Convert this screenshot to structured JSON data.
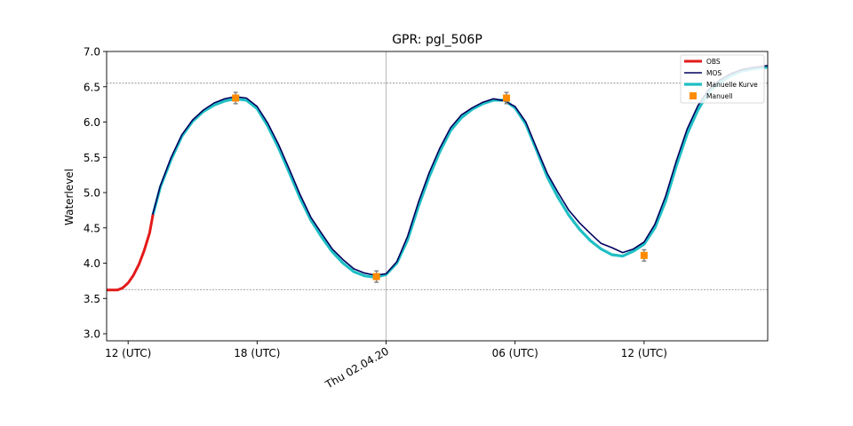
{
  "chart_data": {
    "type": "line",
    "title": "GPR: pgl_506P",
    "xlabel": "",
    "ylabel": "Waterlevel",
    "x_unit": "hours since 2020-04-01 00:00 UTC",
    "xlim": [
      11.0,
      41.75
    ],
    "ylim": [
      2.9,
      7.0
    ],
    "yticks": [
      3.0,
      3.5,
      4.0,
      4.5,
      5.0,
      5.5,
      6.0,
      6.5,
      7.0
    ],
    "xticks": [
      {
        "x": 12,
        "label": "12 (UTC)",
        "rotated": false
      },
      {
        "x": 18,
        "label": "18 (UTC)",
        "rotated": false
      },
      {
        "x": 24,
        "label": "Thu 02.04.20",
        "rotated": true
      },
      {
        "x": 30,
        "label": "06 (UTC)",
        "rotated": false
      },
      {
        "x": 36,
        "label": "12 (UTC)",
        "rotated": false
      }
    ],
    "hlines": [
      6.55,
      3.62
    ],
    "vlines": [
      24
    ],
    "legend_position": "top-right",
    "series": [
      {
        "name": "OBS",
        "color": "#e41a1a",
        "kind": "line",
        "x": [
          11.0,
          11.5,
          11.75,
          12.0,
          12.25,
          12.5,
          12.75,
          13.0,
          13.15
        ],
        "y": [
          3.62,
          3.62,
          3.65,
          3.72,
          3.83,
          3.98,
          4.18,
          4.43,
          4.68
        ]
      },
      {
        "name": "MOS",
        "color": "#00005e",
        "kind": "line",
        "x": [
          13.15,
          13.5,
          14.0,
          14.5,
          15.0,
          15.5,
          16.0,
          16.5,
          17.0,
          17.5,
          18.0,
          18.5,
          19.0,
          19.5,
          20.0,
          20.5,
          21.0,
          21.5,
          22.0,
          22.5,
          23.0,
          23.5,
          24.0,
          24.5,
          25.0,
          25.5,
          26.0,
          26.5,
          27.0,
          27.5,
          28.0,
          28.5,
          29.0,
          29.5,
          30.0,
          30.5,
          31.0,
          31.5,
          32.0,
          32.5,
          33.0,
          33.5,
          34.0,
          34.5,
          35.0,
          35.5,
          36.0,
          36.5,
          37.0,
          37.5,
          38.0,
          38.5,
          39.0,
          39.5,
          40.0,
          40.5,
          41.0,
          41.75
        ],
        "y": [
          4.7,
          5.1,
          5.5,
          5.82,
          6.03,
          6.17,
          6.27,
          6.33,
          6.36,
          6.34,
          6.22,
          5.98,
          5.68,
          5.33,
          4.97,
          4.65,
          4.42,
          4.2,
          4.05,
          3.92,
          3.86,
          3.83,
          3.85,
          4.02,
          4.38,
          4.86,
          5.28,
          5.63,
          5.92,
          6.1,
          6.2,
          6.28,
          6.33,
          6.3,
          6.22,
          6.0,
          5.63,
          5.27,
          5.0,
          4.75,
          4.57,
          4.42,
          4.28,
          4.22,
          4.15,
          4.2,
          4.3,
          4.55,
          4.95,
          5.45,
          5.9,
          6.23,
          6.46,
          6.59,
          6.68,
          6.74,
          6.77,
          6.8
        ]
      },
      {
        "name": "Manuelle Kurve",
        "color": "#1fbfc4",
        "kind": "line",
        "x": [
          13.15,
          13.5,
          14.0,
          14.5,
          15.0,
          15.5,
          16.0,
          16.5,
          17.0,
          17.5,
          18.0,
          18.5,
          19.0,
          19.5,
          20.0,
          20.5,
          21.0,
          21.5,
          22.0,
          22.5,
          23.0,
          23.5,
          24.0,
          24.5,
          25.0,
          25.5,
          26.0,
          26.5,
          27.0,
          27.5,
          28.0,
          28.5,
          29.0,
          29.5,
          30.0,
          30.5,
          31.0,
          31.5,
          32.0,
          32.5,
          33.0,
          33.5,
          34.0,
          34.5,
          35.0,
          35.5,
          36.0,
          36.5,
          37.0,
          37.5,
          38.0,
          38.5,
          39.0,
          39.5,
          40.0,
          40.5,
          41.0,
          41.75
        ],
        "y": [
          4.68,
          5.08,
          5.47,
          5.8,
          6.01,
          6.15,
          6.24,
          6.3,
          6.33,
          6.31,
          6.19,
          5.94,
          5.63,
          5.28,
          4.92,
          4.61,
          4.37,
          4.16,
          4.0,
          3.88,
          3.82,
          3.8,
          3.84,
          4.0,
          4.33,
          4.8,
          5.22,
          5.58,
          5.88,
          6.06,
          6.18,
          6.26,
          6.31,
          6.31,
          6.2,
          5.97,
          5.6,
          5.22,
          4.93,
          4.68,
          4.48,
          4.32,
          4.2,
          4.12,
          4.1,
          4.17,
          4.27,
          4.5,
          4.88,
          5.38,
          5.83,
          6.17,
          6.42,
          6.56,
          6.65,
          6.72,
          6.75,
          6.78
        ]
      },
      {
        "name": "Manuell",
        "color": "#ff8c00",
        "kind": "points",
        "errorbar": 0.08,
        "x": [
          17.0,
          23.55,
          29.6,
          36.0
        ],
        "y": [
          6.34,
          3.81,
          6.34,
          4.11
        ]
      }
    ]
  }
}
